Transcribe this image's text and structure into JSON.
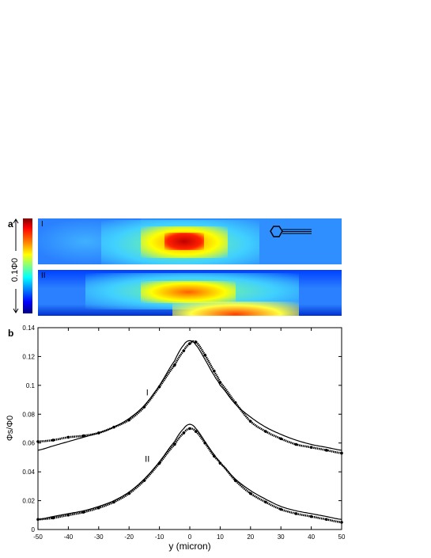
{
  "panel_a": {
    "label": "a",
    "colorbar_label": "0.1Φ0",
    "map_I_label": "I",
    "map_II_label": "II"
  },
  "panel_b": {
    "label": "b"
  },
  "chart_data": {
    "type": "line",
    "xlabel": "y (micron)",
    "ylabel": "Φs/Φ0",
    "xlim": [
      -50,
      50
    ],
    "ylim": [
      0,
      0.14
    ],
    "xticks": [
      -50,
      -40,
      -30,
      -20,
      -10,
      0,
      10,
      20,
      30,
      40,
      50
    ],
    "yticks": [
      0,
      0.02,
      0.04,
      0.06,
      0.08,
      0.1,
      0.12,
      0.14
    ],
    "ytick_labels": [
      "0",
      "0.02",
      "0.04",
      "0.06",
      "0.08",
      "0.1",
      "0.12",
      "0.14"
    ],
    "annotations": [
      {
        "text": "I",
        "x": -14,
        "y": 0.093
      },
      {
        "text": "II",
        "x": -14,
        "y": 0.047
      }
    ],
    "series": [
      {
        "style": "dots",
        "x": [
          -50,
          -45,
          -40,
          -35,
          -30,
          -25,
          -20,
          -15,
          -10,
          -5,
          -2,
          0,
          2,
          5,
          8,
          10,
          15,
          20,
          25,
          30,
          35,
          40,
          45,
          50
        ],
        "y": [
          0.061,
          0.062,
          0.064,
          0.065,
          0.067,
          0.071,
          0.076,
          0.085,
          0.099,
          0.114,
          0.124,
          0.129,
          0.13,
          0.121,
          0.11,
          0.102,
          0.088,
          0.075,
          0.068,
          0.063,
          0.059,
          0.057,
          0.055,
          0.053
        ]
      },
      {
        "style": "line",
        "x": [
          -50,
          -45,
          -40,
          -35,
          -30,
          -25,
          -20,
          -15,
          -10,
          -5,
          -2,
          0,
          2,
          5,
          8,
          10,
          15,
          20,
          25,
          30,
          35,
          40,
          45,
          50
        ],
        "y": [
          0.055,
          0.058,
          0.061,
          0.064,
          0.067,
          0.071,
          0.077,
          0.086,
          0.1,
          0.117,
          0.128,
          0.131,
          0.128,
          0.118,
          0.107,
          0.1,
          0.087,
          0.078,
          0.071,
          0.066,
          0.062,
          0.059,
          0.057,
          0.055
        ]
      },
      {
        "style": "dots",
        "x": [
          -50,
          -45,
          -40,
          -35,
          -30,
          -25,
          -20,
          -15,
          -10,
          -5,
          -2,
          0,
          2,
          5,
          8,
          10,
          15,
          20,
          25,
          30,
          35,
          40,
          45,
          50
        ],
        "y": [
          0.007,
          0.008,
          0.01,
          0.012,
          0.015,
          0.019,
          0.025,
          0.034,
          0.046,
          0.059,
          0.067,
          0.07,
          0.068,
          0.06,
          0.051,
          0.046,
          0.034,
          0.025,
          0.019,
          0.014,
          0.011,
          0.009,
          0.007,
          0.005
        ]
      },
      {
        "style": "line",
        "x": [
          -50,
          -45,
          -40,
          -35,
          -30,
          -25,
          -20,
          -15,
          -10,
          -5,
          -2,
          0,
          2,
          5,
          8,
          10,
          15,
          20,
          25,
          30,
          35,
          40,
          45,
          50
        ],
        "y": [
          0.007,
          0.009,
          0.011,
          0.013,
          0.016,
          0.02,
          0.026,
          0.035,
          0.047,
          0.061,
          0.07,
          0.073,
          0.07,
          0.061,
          0.052,
          0.046,
          0.035,
          0.027,
          0.021,
          0.016,
          0.013,
          0.011,
          0.009,
          0.007
        ]
      }
    ]
  }
}
